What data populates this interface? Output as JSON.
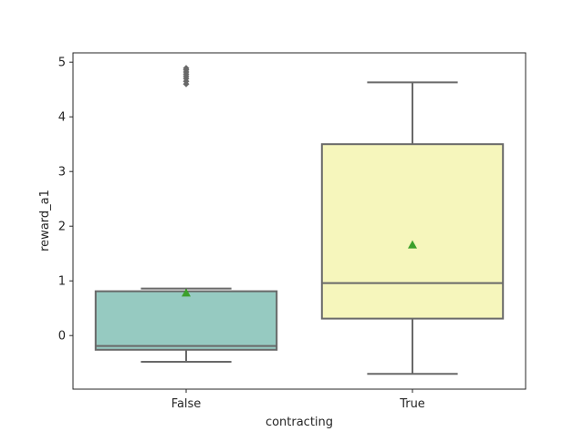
{
  "chart_data": {
    "type": "box",
    "xlabel": "contracting",
    "ylabel": "reward_a1",
    "categories": [
      "False",
      "True"
    ],
    "ylim": [
      -0.98,
      5.17
    ],
    "yticks": [
      0,
      1,
      2,
      3,
      4,
      5
    ],
    "grid": false,
    "boxes": [
      {
        "category": "False",
        "color": "#96cac1",
        "whisker_low": -0.48,
        "q1": -0.26,
        "median": -0.19,
        "q3": 0.81,
        "whisker_high": 0.86,
        "mean": 0.78,
        "outliers": [
          4.6,
          4.65,
          4.7,
          4.74,
          4.78,
          4.82,
          4.86,
          4.89
        ]
      },
      {
        "category": "True",
        "color": "#f6f6bc",
        "whisker_low": -0.7,
        "q1": 0.31,
        "median": 0.96,
        "q3": 3.5,
        "whisker_high": 4.63,
        "mean": 1.66,
        "outliers": []
      }
    ],
    "colors": {
      "box_edge": "#696969",
      "mean_marker": "#3ca02c",
      "outlier": "#696969"
    }
  }
}
